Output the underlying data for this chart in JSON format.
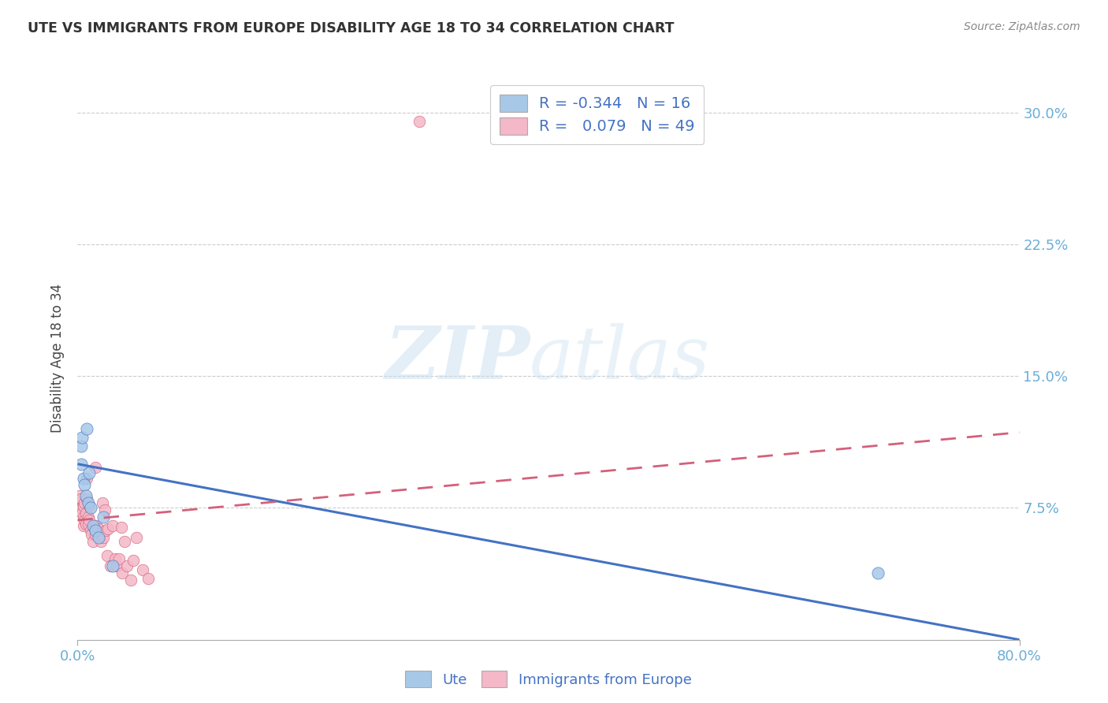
{
  "title": "UTE VS IMMIGRANTS FROM EUROPE DISABILITY AGE 18 TO 34 CORRELATION CHART",
  "source": "Source: ZipAtlas.com",
  "tick_color": "#6baed6",
  "ylabel": "Disability Age 18 to 34",
  "xlim": [
    0.0,
    0.8
  ],
  "ylim": [
    0.0,
    0.32
  ],
  "yticks": [
    0.075,
    0.15,
    0.225,
    0.3
  ],
  "ytick_labels": [
    "7.5%",
    "15.0%",
    "22.5%",
    "30.0%"
  ],
  "xtick_positions": [
    0.0,
    0.8
  ],
  "xtick_labels": [
    "0.0%",
    "80.0%"
  ],
  "watermark_zip": "ZIP",
  "watermark_atlas": "atlas",
  "legend_r_ute": "-0.344",
  "legend_n_ute": "16",
  "legend_r_immig": "0.079",
  "legend_n_immig": "49",
  "ute_color": "#a8c8e8",
  "ute_line_color": "#4472c4",
  "immig_color": "#f4b8c8",
  "immig_line_color": "#d4607a",
  "ute_scatter_x": [
    0.003,
    0.003,
    0.004,
    0.005,
    0.006,
    0.007,
    0.008,
    0.009,
    0.01,
    0.011,
    0.013,
    0.015,
    0.018,
    0.022,
    0.03,
    0.68
  ],
  "ute_scatter_y": [
    0.1,
    0.11,
    0.115,
    0.092,
    0.088,
    0.082,
    0.12,
    0.078,
    0.095,
    0.075,
    0.065,
    0.062,
    0.058,
    0.07,
    0.042,
    0.038
  ],
  "immig_scatter_x": [
    0.002,
    0.002,
    0.003,
    0.003,
    0.004,
    0.004,
    0.005,
    0.005,
    0.005,
    0.006,
    0.006,
    0.007,
    0.007,
    0.008,
    0.008,
    0.009,
    0.009,
    0.01,
    0.01,
    0.011,
    0.012,
    0.013,
    0.014,
    0.015,
    0.015,
    0.016,
    0.018,
    0.02,
    0.021,
    0.022,
    0.023,
    0.024,
    0.025,
    0.026,
    0.028,
    0.03,
    0.032,
    0.033,
    0.035,
    0.037,
    0.038,
    0.04,
    0.042,
    0.045,
    0.047,
    0.05,
    0.055,
    0.06,
    0.29
  ],
  "immig_scatter_y": [
    0.082,
    0.078,
    0.08,
    0.075,
    0.075,
    0.072,
    0.076,
    0.07,
    0.065,
    0.078,
    0.068,
    0.072,
    0.066,
    0.08,
    0.092,
    0.07,
    0.066,
    0.068,
    0.076,
    0.062,
    0.06,
    0.056,
    0.064,
    0.06,
    0.098,
    0.065,
    0.063,
    0.056,
    0.078,
    0.058,
    0.074,
    0.062,
    0.048,
    0.063,
    0.042,
    0.065,
    0.046,
    0.042,
    0.046,
    0.064,
    0.038,
    0.056,
    0.042,
    0.034,
    0.045,
    0.058,
    0.04,
    0.035,
    0.295
  ],
  "ute_line_x0": 0.0,
  "ute_line_y0": 0.1,
  "ute_line_x1": 0.8,
  "ute_line_y1": 0.0,
  "immig_line_x0": 0.0,
  "immig_line_y0": 0.068,
  "immig_line_x1": 0.8,
  "immig_line_y1": 0.118,
  "background_color": "#ffffff",
  "grid_color": "#cccccc"
}
